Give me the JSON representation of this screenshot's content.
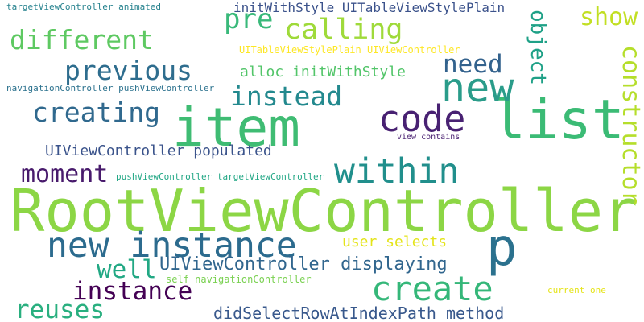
{
  "words": [
    {
      "text": "RootViewController",
      "color": "#8cd645"
    },
    {
      "text": "item",
      "color": "#3fbc73"
    },
    {
      "text": "list",
      "color": "#3bbb75"
    },
    {
      "text": "new",
      "color": "#2a9c8a"
    },
    {
      "text": "p",
      "color": "#2b718e"
    },
    {
      "text": "new instance",
      "color": "#2c6b8e"
    },
    {
      "text": "within",
      "color": "#218f8c"
    },
    {
      "text": "create",
      "color": "#35b779"
    },
    {
      "text": "code",
      "color": "#482172"
    },
    {
      "text": "pre",
      "color": "#39b97a"
    },
    {
      "text": "constructor",
      "color": "#b5de2b"
    },
    {
      "text": "different",
      "color": "#5ec962"
    },
    {
      "text": "calling",
      "color": "#9fda3a"
    },
    {
      "text": "previous",
      "color": "#2e6d8e"
    },
    {
      "text": "creating",
      "color": "#30698e"
    },
    {
      "text": "instead",
      "color": "#23898e"
    },
    {
      "text": "object",
      "color": "#1fa187"
    },
    {
      "text": "show",
      "color": "#c2df23"
    },
    {
      "text": "need",
      "color": "#33628d"
    },
    {
      "text": "moment",
      "color": "#481a6c"
    },
    {
      "text": "instance",
      "color": "#440154"
    },
    {
      "text": "well",
      "color": "#22a884"
    },
    {
      "text": "reuses",
      "color": "#29af7f"
    },
    {
      "text": "UIViewController displaying",
      "color": "#31668e"
    },
    {
      "text": "UIViewController populated",
      "color": "#3a538b"
    },
    {
      "text": "didSelectRowAtIndexPath method",
      "color": "#38588c"
    },
    {
      "text": "alloc initWithStyle",
      "color": "#52c569"
    },
    {
      "text": "initWithStyle UITableViewStylePlain",
      "color": "#3b528b"
    },
    {
      "text": "user selects",
      "color": "#e4e419"
    },
    {
      "text": "UITableViewStylePlain UIViewController",
      "color": "#fde725"
    },
    {
      "text": "navigationController pushViewController",
      "color": "#2c728e"
    },
    {
      "text": "pushViewController targetViewController",
      "color": "#22a785"
    },
    {
      "text": "self navigationController",
      "color": "#7ad151"
    },
    {
      "text": "targetViewController animated",
      "color": "#26828e"
    },
    {
      "text": "view contains",
      "color": "#481f70"
    },
    {
      "text": "current one",
      "color": "#e5e419"
    }
  ]
}
